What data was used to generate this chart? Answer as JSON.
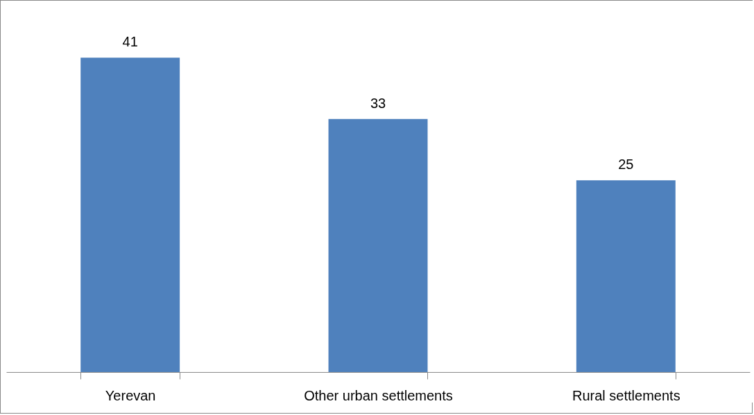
{
  "chart_data": {
    "type": "bar",
    "categories": [
      "Yerevan",
      "Other urban settlements",
      "Rural settlements"
    ],
    "values": [
      41,
      33,
      25
    ],
    "color": "#4f81bd",
    "data_labels": true,
    "grid": false
  }
}
